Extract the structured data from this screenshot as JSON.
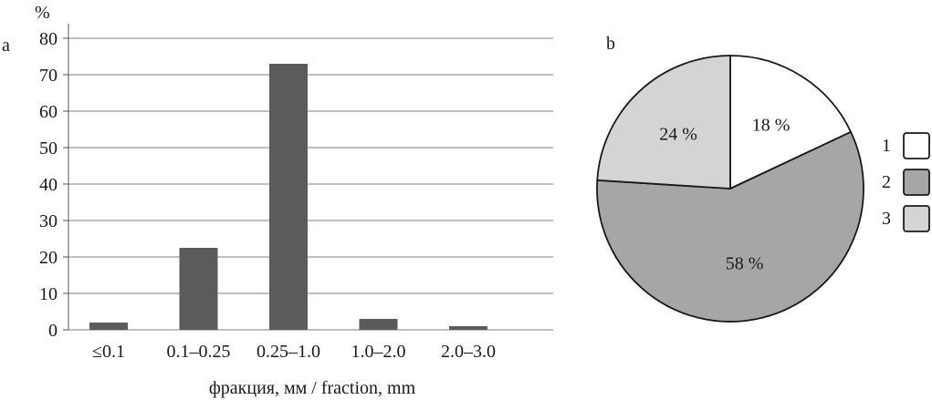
{
  "chart_data": [
    {
      "type": "bar",
      "panel_label": "a",
      "ylabel": "%",
      "xlabel": "фракция, мм / fraction, mm",
      "categories": [
        "≤0.1",
        "0.1–0.25",
        "0.25–1.0",
        "1.0–2.0",
        "2.0–3.0"
      ],
      "values": [
        2,
        22.5,
        73,
        3,
        1
      ],
      "ylim": [
        0,
        80
      ],
      "yticks": [
        0,
        10,
        20,
        30,
        40,
        50,
        60,
        70,
        80
      ],
      "grid": true,
      "colors": {
        "bar": "#5b5b5b",
        "grid": "#9a9a9a"
      }
    },
    {
      "type": "pie",
      "panel_label": "b",
      "slices": [
        {
          "legend": "1",
          "value": 18,
          "label": "18 %",
          "color": "#ffffff"
        },
        {
          "legend": "2",
          "value": 58,
          "label": "58 %",
          "color": "#a6a6a6"
        },
        {
          "legend": "3",
          "value": 24,
          "label": "24 %",
          "color": "#d4d4d4"
        }
      ],
      "legend_position": "right"
    }
  ]
}
